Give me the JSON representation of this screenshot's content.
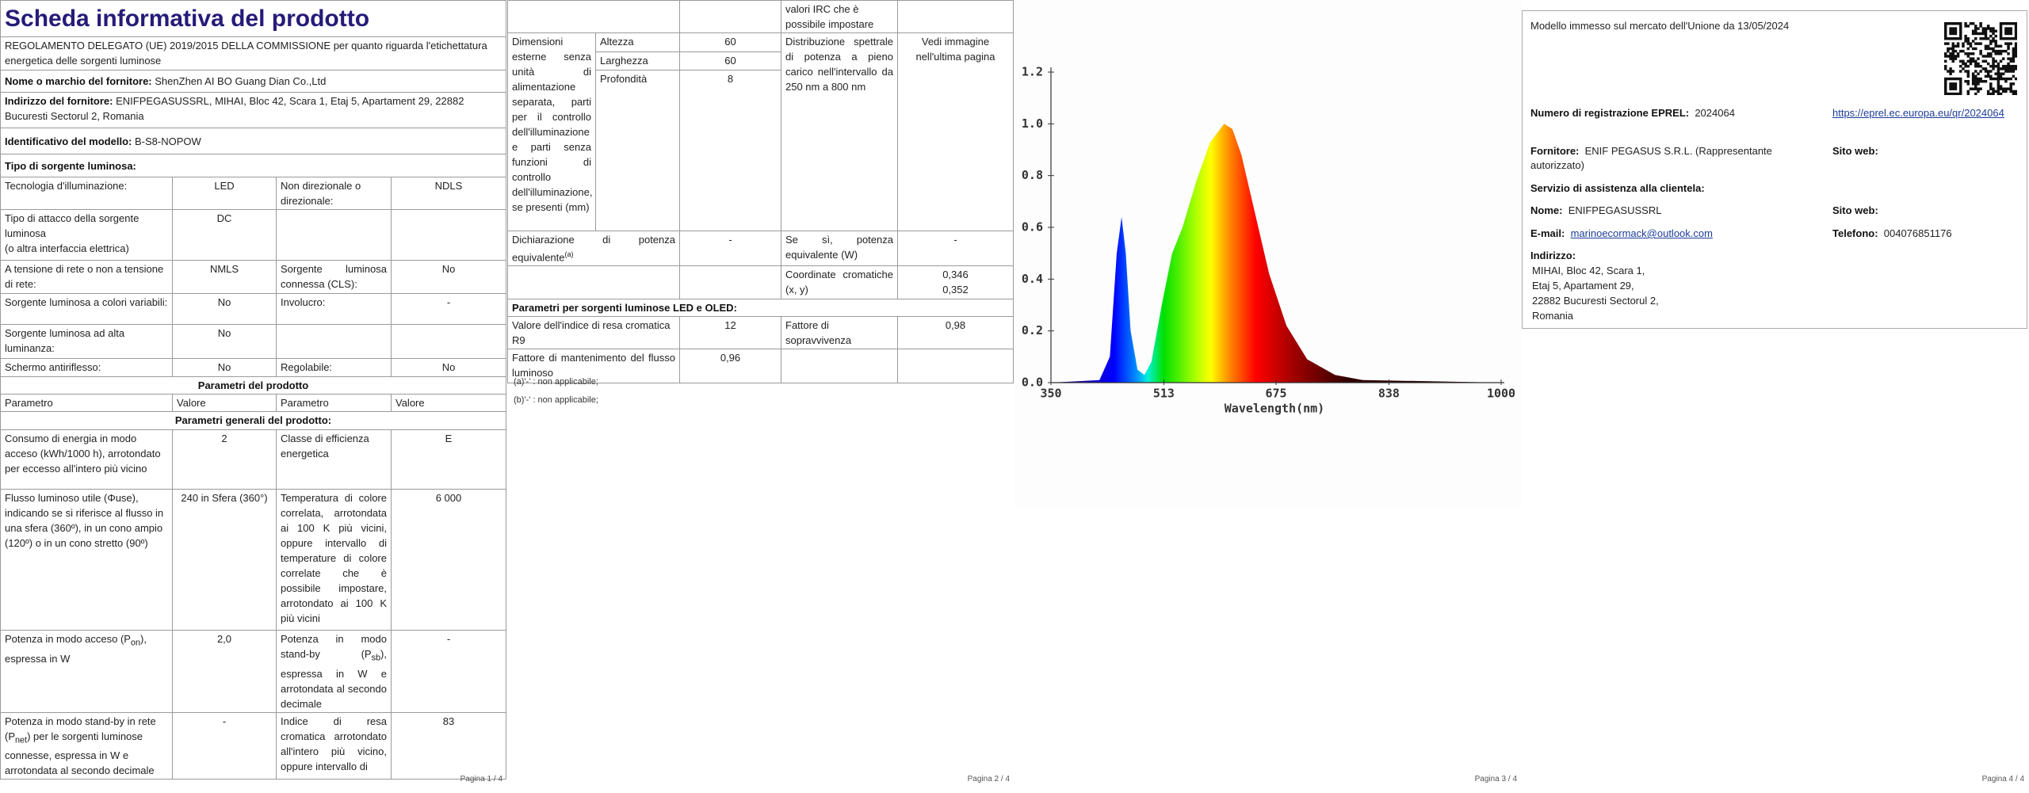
{
  "page1": {
    "title": "Scheda informativa del prodotto",
    "regulation": "REGOLAMENTO DELEGATO (UE) 2019/2015 DELLA COMMISSIONE per quanto riguarda l'etichettatura energetica delle sorgenti luminose",
    "supplier_label": "Nome o marchio del fornitore:",
    "supplier": "ShenZhen AI BO Guang Dian Co.,Ltd",
    "address_label": "Indirizzo del fornitore:",
    "address": "ENIFPEGASUSSRL, MIHAI, Bloc 42, Scara 1, Etaj 5, Apartament 29, 22882 Bucuresti Sectorul 2, Romania",
    "model_label": "Identificativo del modello:",
    "model": "B-S8-NOPOW",
    "source_type": "Tipo di sorgente luminosa:",
    "rows": [
      [
        "Tecnologia d'illuminazione:",
        "LED",
        "Non direzionale o direzionale:",
        "NDLS"
      ],
      [
        [
          "Tipo di attacco della sorgente luminosa",
          "(o altra interfaccia elettrica)"
        ],
        "DC"
      ],
      [
        "A tensione di rete o non a tensione di rete:",
        "NMLS",
        "Sorgente luminosa connessa (CLS):",
        "No"
      ],
      [
        "Sorgente luminosa a colori variabili:",
        "No",
        "Involucro:",
        "-"
      ],
      [
        "Sorgente luminosa ad alta luminanza:",
        "No"
      ],
      [
        "Schermo antiriflesso:",
        "No",
        "Regolabile:",
        "No"
      ]
    ],
    "section1": "Parametri del prodotto",
    "header": [
      "Parametro",
      "Valore",
      "Parametro",
      "Valore"
    ],
    "section2": "Parametri generali del prodotto:",
    "rows2": [
      [
        "Consumo di energia in modo acceso (kWh/1000 h), arrotondato per eccesso all'intero più vicino",
        "2",
        "Classe di efficienza energetica",
        "E"
      ],
      [
        "Flusso luminoso utile (Φuse), indicando se si riferisce al flusso in una sfera (360º), in un cono ampio (120º) o in un cono stretto (90º)",
        "240 in Sfera (360°)",
        "Temperatura di colore correlata, arrotondata ai 100 K più vicini, oppure intervallo di temperature di colore correlate che è possibile impostare, arrotondato ai 100 K più vicini",
        "6 000"
      ],
      [
        [
          "Potenza in modo acceso (P",
          "on",
          "), espressa in W"
        ],
        "2,0",
        [
          "Potenza in modo stand-by (P",
          "sb",
          "), espressa in W e arrotondata al secondo decimale"
        ],
        "-"
      ],
      [
        [
          "Potenza in modo stand-by in rete (P",
          "net",
          ") per le sorgenti luminose connesse, espressa in W e arrotondata al secondo decimale"
        ],
        "-",
        "Indice di resa cromatica arrotondato all'intero più vicino, oppure intervallo di",
        "83"
      ]
    ],
    "footer": "Pagina 1 / 4"
  },
  "page2": {
    "irc_cont": "valori IRC che è possibile impostare",
    "dims_label": "Dimensioni esterne senza unità di alimentazione separata, parti per il controllo dell'illuminazione e parti senza funzioni di controllo dell'illuminazione, se presenti (mm)",
    "dims": [
      [
        "Altezza",
        "60"
      ],
      [
        "Larghezza",
        "60"
      ],
      [
        "Profondità",
        "8"
      ]
    ],
    "spectral_label": "Distribuzione spettrale di potenza a pieno carico nell'intervallo da 250 nm a 800 nm",
    "spectral_value": "Vedi immagine nell'ultima pagina",
    "equiv_label": [
      "Dichiarazione di potenza equivalente",
      "(a)"
    ],
    "equiv_value": "-",
    "equiv_w_label": "Se sì, potenza equivalente (W)",
    "equiv_w_value": "-",
    "chroma_label": "Coordinate cromatiche (x, y)",
    "chroma_values": [
      "0,346",
      "0,352"
    ],
    "led_section": "Parametri per sorgenti luminose LED e OLED:",
    "r9_label": "Valore dell'indice di resa cromatica R9",
    "r9_value": "12",
    "survival_label": "Fattore di sopravvivenza",
    "survival_value": "0,98",
    "maint_label": "Fattore di mantenimento del flusso luminoso",
    "maint_value": "0,96",
    "notes": [
      "(a)'-' : non applicabile;",
      "(b)'-' : non applicabile;"
    ],
    "footer": "Pagina 2 / 4"
  },
  "chart_data": {
    "type": "area",
    "xlabel": "Wavelength(nm)",
    "x": [
      350,
      420,
      435,
      445,
      452,
      458,
      465,
      475,
      485,
      495,
      510,
      525,
      540,
      560,
      580,
      600,
      612,
      625,
      645,
      665,
      690,
      720,
      760,
      800,
      1000
    ],
    "values": [
      0,
      0.01,
      0.1,
      0.5,
      0.64,
      0.5,
      0.2,
      0.05,
      0.03,
      0.08,
      0.3,
      0.5,
      0.6,
      0.78,
      0.93,
      1.0,
      0.98,
      0.88,
      0.65,
      0.42,
      0.22,
      0.09,
      0.03,
      0.01,
      0
    ],
    "xlim": [
      350,
      1000
    ],
    "ylim": [
      0,
      1.2
    ],
    "xticks": [
      350,
      513,
      675,
      838,
      1000
    ],
    "yticks": [
      {
        "value": 0,
        "label": "0.0"
      },
      {
        "value": 0.2,
        "label": "0.2"
      },
      {
        "value": 0.4,
        "label": "0.4"
      },
      {
        "value": 0.6,
        "label": "0.6"
      },
      {
        "value": 0.8,
        "label": "0.8"
      },
      {
        "value": 1.0,
        "label": "1.0"
      },
      {
        "value": 1.2,
        "label": "1.2"
      }
    ]
  },
  "page3": {
    "footer": "Pagina 3 / 4"
  },
  "page4": {
    "market": "Modello immesso sul mercato dell'Unione da 13/05/2024",
    "eprel_label": "Numero di registrazione EPREL:",
    "eprel": "2024064",
    "eprel_url": "https://eprel.ec.europa.eu/qr/2024064",
    "supplier_label": "Fornitore:",
    "supplier": "ENIF PEGASUS S.R.L. (Rappresentante autorizzato)",
    "website_label": "Sito web:",
    "service": "Servizio di assistenza alla clientela:",
    "name_label": "Nome:",
    "name": "ENIFPEGASUSSRL",
    "website2_label": "Sito web:",
    "email_label": "E-mail:",
    "email": "marinoecormack@outlook.com",
    "phone_label": "Telefono:",
    "phone": "004076851176",
    "address_label": "Indirizzo:",
    "address_lines": [
      "MIHAI, Bloc 42, Scara 1,",
      "Etaj 5, Apartament 29,",
      "22882 Bucuresti Sectorul 2,",
      "Romania"
    ],
    "footer": "Pagina 4 / 4"
  }
}
